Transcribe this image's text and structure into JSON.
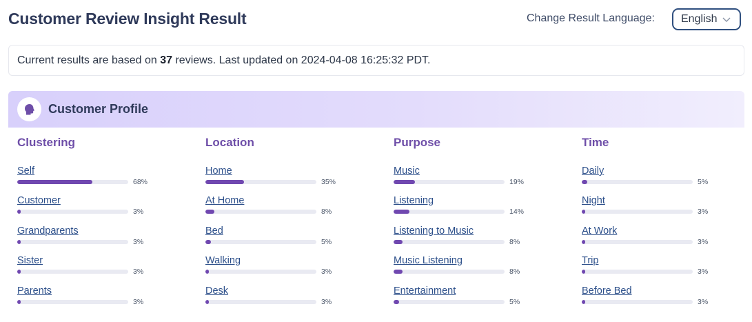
{
  "header": {
    "title": "Customer Review Insight Result",
    "language_label": "Change Result Language:",
    "language_value": "English",
    "language_icon": "chevron-down-icon"
  },
  "summary": {
    "prefix": "Current results are based on ",
    "count": "37",
    "suffix": " reviews. Last updated on 2024-04-08 16:25:32 PDT."
  },
  "section": {
    "title": "Customer Profile",
    "icon": "head-profile-icon",
    "accent_color": "#7048b0"
  },
  "columns": [
    {
      "title": "Clustering",
      "items": [
        {
          "label": "Self",
          "percent": 68,
          "display": "68%"
        },
        {
          "label": "Customer",
          "percent": 3,
          "display": "3%"
        },
        {
          "label": "Grandparents",
          "percent": 3,
          "display": "3%"
        },
        {
          "label": "Sister",
          "percent": 3,
          "display": "3%"
        },
        {
          "label": "Parents",
          "percent": 3,
          "display": "3%"
        }
      ]
    },
    {
      "title": "Location",
      "items": [
        {
          "label": "Home",
          "percent": 35,
          "display": "35%"
        },
        {
          "label": "At Home",
          "percent": 8,
          "display": "8%"
        },
        {
          "label": "Bed",
          "percent": 5,
          "display": "5%"
        },
        {
          "label": "Walking",
          "percent": 3,
          "display": "3%"
        },
        {
          "label": "Desk",
          "percent": 3,
          "display": "3%"
        }
      ]
    },
    {
      "title": "Purpose",
      "items": [
        {
          "label": "Music",
          "percent": 19,
          "display": "19%"
        },
        {
          "label": "Listening",
          "percent": 14,
          "display": "14%"
        },
        {
          "label": "Listening to Music",
          "percent": 8,
          "display": "8%"
        },
        {
          "label": "Music Listening",
          "percent": 8,
          "display": "8%"
        },
        {
          "label": "Entertainment",
          "percent": 5,
          "display": "5%"
        }
      ]
    },
    {
      "title": "Time",
      "items": [
        {
          "label": "Daily",
          "percent": 5,
          "display": "5%"
        },
        {
          "label": "Night",
          "percent": 3,
          "display": "3%"
        },
        {
          "label": "At Work",
          "percent": 3,
          "display": "3%"
        },
        {
          "label": "Trip",
          "percent": 3,
          "display": "3%"
        },
        {
          "label": "Before Bed",
          "percent": 3,
          "display": "3%"
        }
      ]
    }
  ]
}
